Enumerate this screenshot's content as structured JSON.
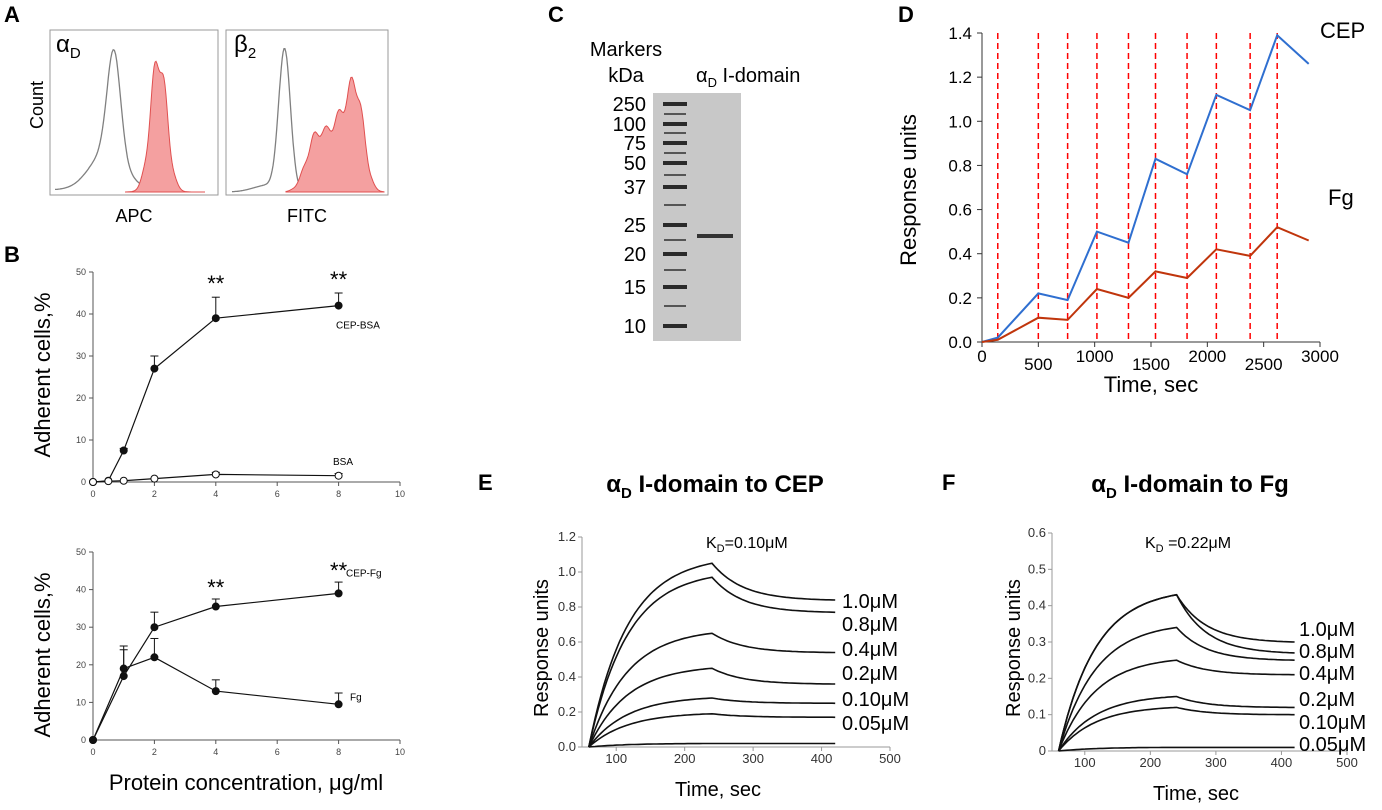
{
  "panels": {
    "A": {
      "label": "A",
      "ylabel": "Count",
      "left": {
        "title_main": "α",
        "title_sub": "D",
        "xlabel": "APC"
      },
      "right": {
        "title_main": "β",
        "title_sub": "2",
        "xlabel": "FITC"
      }
    },
    "B": {
      "label": "B",
      "xlabel": "Protein concentration, μg/ml",
      "top": {
        "ylabel": "Adherent cells,%",
        "yticks": [
          "0",
          "10",
          "20",
          "30",
          "40",
          "50"
        ],
        "xticks": [
          "0",
          "2",
          "4",
          "6",
          "8",
          "10"
        ],
        "sig": [
          "**",
          "**"
        ],
        "series_labels": [
          "CEP-BSA",
          "BSA"
        ]
      },
      "bottom": {
        "ylabel": "Adherent cells,%",
        "yticks": [
          "0",
          "10",
          "20",
          "30",
          "40",
          "50"
        ],
        "xticks": [
          "0",
          "2",
          "4",
          "6",
          "8",
          "10"
        ],
        "sig": [
          "**",
          "**"
        ],
        "series_labels": [
          "CEP-Fg",
          "Fg"
        ]
      }
    },
    "C": {
      "label": "C",
      "markers_title": "Markers",
      "kda": "kDa",
      "lane_main": "α",
      "lane_sub": "D",
      "lane_rest": " I-domain",
      "marker_values": [
        "250",
        "100",
        "75",
        "50",
        "37",
        "25",
        "20",
        "15",
        "10"
      ]
    },
    "D": {
      "label": "D",
      "xlabel": "Time, sec",
      "ylabel": "Response units",
      "yticks": [
        "0.0",
        "0.2",
        "0.4",
        "0.6",
        "0.8",
        "1.0",
        "1.2",
        "1.4"
      ],
      "xticks": [
        "0",
        "500",
        "1000",
        "1500",
        "2000",
        "2500",
        "3000"
      ],
      "series_labels": [
        "CEP",
        "Fg"
      ]
    },
    "E": {
      "label": "E",
      "title_main": "α",
      "title_sub": "D",
      "title_rest": " I-domain  to CEP",
      "kd_main": "K",
      "kd_sub": "D",
      "kd_rest": "=0.10μM",
      "xlabel": "Time, sec",
      "ylabel": "Response units",
      "yticks": [
        "0.0",
        "0.2",
        "0.4",
        "0.6",
        "0.8",
        "1.0",
        "1.2"
      ],
      "xticks": [
        "100",
        "200",
        "300",
        "400",
        "500"
      ],
      "conc_labels": [
        "1.0μM",
        "0.8μM",
        "0.4μM",
        "0.2μM",
        "0.10μM",
        "0.05μM"
      ]
    },
    "F": {
      "label": "F",
      "title_main": "α",
      "title_sub": "D",
      "title_rest": " I-domain  to Fg",
      "kd_main": "K",
      "kd_sub": "D",
      "kd_rest": " =0.22μM",
      "xlabel": "Time, sec",
      "ylabel": "Response units",
      "yticks": [
        "0",
        "0.1",
        "0.2",
        "0.3",
        "0.4",
        "0.5",
        "0.6"
      ],
      "xticks": [
        "100",
        "200",
        "300",
        "400",
        "500"
      ],
      "conc_labels": [
        "1.0μM",
        "0.8μM",
        "0.4μM",
        "0.2μM",
        "0.10μM",
        "0.05μM"
      ]
    }
  },
  "chart_data": [
    {
      "panel": "B-top",
      "type": "line",
      "title": "",
      "xlabel": "Protein concentration, μg/ml",
      "ylabel": "Adherent cells,%",
      "xlim": [
        0,
        10
      ],
      "ylim": [
        0,
        50
      ],
      "series": [
        {
          "name": "CEP-BSA",
          "x": [
            0,
            0.5,
            1,
            2,
            4,
            8
          ],
          "values": [
            0,
            0.3,
            7.5,
            27,
            39,
            42
          ],
          "errors": [
            0,
            0,
            0.5,
            3,
            5,
            3
          ],
          "marker": "filled"
        },
        {
          "name": "BSA",
          "x": [
            0,
            0.5,
            1,
            2,
            4,
            8
          ],
          "values": [
            0,
            0.2,
            0.3,
            0.8,
            1.8,
            1.5
          ],
          "errors": [
            0,
            0,
            0,
            0,
            0.5,
            0.5
          ],
          "marker": "open"
        }
      ]
    },
    {
      "panel": "B-bottom",
      "type": "line",
      "title": "",
      "xlabel": "Protein concentration, μg/ml",
      "ylabel": "Adherent cells,%",
      "xlim": [
        0,
        10
      ],
      "ylim": [
        0,
        50
      ],
      "series": [
        {
          "name": "CEP-Fg",
          "x": [
            0,
            1,
            2,
            4,
            8
          ],
          "values": [
            0,
            17,
            30,
            35.5,
            39
          ],
          "errors": [
            0,
            7,
            4,
            2,
            3
          ],
          "marker": "filled"
        },
        {
          "name": "Fg",
          "x": [
            0,
            1,
            2,
            4,
            8
          ],
          "values": [
            0,
            19,
            22,
            13,
            9.5
          ],
          "errors": [
            0,
            6,
            5,
            3,
            3
          ],
          "marker": "filled"
        }
      ]
    },
    {
      "panel": "D",
      "type": "line",
      "title": "",
      "xlabel": "Time, sec",
      "ylabel": "Response units",
      "xlim": [
        0,
        3000
      ],
      "ylim": [
        0,
        1.4
      ],
      "injection_times": [
        140,
        500,
        760,
        1020,
        1300,
        1540,
        1820,
        2080,
        2380,
        2620
      ],
      "series": [
        {
          "name": "CEP",
          "x": [
            0,
            140,
            500,
            760,
            1020,
            1300,
            1540,
            1820,
            2080,
            2380,
            2620,
            2900
          ],
          "values": [
            0,
            0.02,
            0.22,
            0.19,
            0.5,
            0.45,
            0.83,
            0.76,
            1.12,
            1.05,
            1.39,
            1.26
          ]
        },
        {
          "name": "Fg",
          "x": [
            0,
            140,
            500,
            760,
            1020,
            1300,
            1540,
            1820,
            2080,
            2380,
            2620,
            2900
          ],
          "values": [
            0,
            0.01,
            0.11,
            0.1,
            0.24,
            0.2,
            0.32,
            0.29,
            0.42,
            0.39,
            0.52,
            0.46
          ]
        }
      ]
    },
    {
      "panel": "E",
      "type": "line",
      "title": "αD I-domain to CEP",
      "xlabel": "Time, sec",
      "ylabel": "Response units",
      "xlim": [
        50,
        500
      ],
      "ylim": [
        0,
        1.2
      ],
      "kd": "KD=0.10μM",
      "association_start": 60,
      "association_end": 240,
      "x_end": 420,
      "series": [
        {
          "name": "1.0μM",
          "peak": 1.05,
          "end": 0.84
        },
        {
          "name": "0.8μM",
          "peak": 0.97,
          "end": 0.77
        },
        {
          "name": "0.4μM",
          "peak": 0.65,
          "end": 0.54
        },
        {
          "name": "0.2μM",
          "peak": 0.45,
          "end": 0.36
        },
        {
          "name": "0.10μM",
          "peak": 0.28,
          "end": 0.25
        },
        {
          "name": "0.05μM",
          "peak": 0.19,
          "end": 0.17
        },
        {
          "name": "0",
          "peak": 0.02,
          "end": 0.02
        }
      ]
    },
    {
      "panel": "F",
      "type": "line",
      "title": "αD I-domain to Fg",
      "xlabel": "Time, sec",
      "ylabel": "Response units",
      "xlim": [
        50,
        500
      ],
      "ylim": [
        0,
        0.6
      ],
      "kd": "KD =0.22μM",
      "association_start": 60,
      "association_end": 240,
      "x_end": 420,
      "series": [
        {
          "name": "1.0μM",
          "peak": 0.43,
          "end": 0.3
        },
        {
          "name": "0.8μM",
          "peak": 0.43,
          "end": 0.27
        },
        {
          "name": "0.4μM",
          "peak": 0.34,
          "end": 0.25
        },
        {
          "name": "0.2μM",
          "peak": 0.25,
          "end": 0.21
        },
        {
          "name": "0.10μM",
          "peak": 0.15,
          "end": 0.12
        },
        {
          "name": "0.05μM",
          "peak": 0.12,
          "end": 0.1
        },
        {
          "name": "0",
          "peak": 0.01,
          "end": 0.01
        }
      ]
    }
  ],
  "colors": {
    "cep_line": "#2f6fd0",
    "fg_line": "#c0350c",
    "injection_line": "#ff0000",
    "histogram_fill": "#f4a0a0",
    "histogram_stroke": "#e05050",
    "gray_line": "#808080",
    "gel_bg": "#c8c8c8",
    "gel_band": "#333333"
  }
}
